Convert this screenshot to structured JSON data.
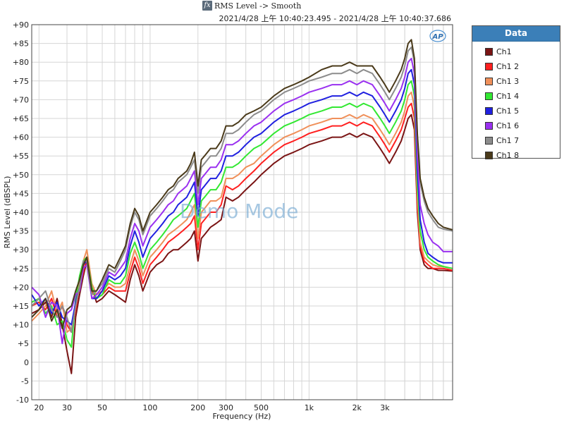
{
  "header": {
    "fx_glyph": "fx",
    "title": "RMS Level -> Smooth",
    "subtitle": "2021/4/28 上午 10:40:23.495 - 2021/4/28 上午 10:40:37.686"
  },
  "logo_text": "AP",
  "watermark": "Demo Mode",
  "legend": {
    "title": "Data",
    "items": [
      {
        "label": "Ch1",
        "color": "#7a1414"
      },
      {
        "label": "Ch1 2",
        "color": "#ff2020"
      },
      {
        "label": "Ch1 3",
        "color": "#f0905a"
      },
      {
        "label": "Ch1 4",
        "color": "#32e832"
      },
      {
        "label": "Ch1 5",
        "color": "#2020e0"
      },
      {
        "label": "Ch1 6",
        "color": "#9a30f0"
      },
      {
        "label": "Ch1 7",
        "color": "#8c8c8c"
      },
      {
        "label": "Ch1 8",
        "color": "#4a3a1a"
      }
    ]
  },
  "chart_data": {
    "type": "line",
    "title": "RMS Level -> Smooth",
    "xlabel": "Frequency (Hz)",
    "ylabel": "RMS Level (dBSPL)",
    "x_scale": "log",
    "xlim": [
      18,
      8000
    ],
    "ylim": [
      -10,
      90
    ],
    "grid": true,
    "legend_position": "right",
    "x_ticks": [
      {
        "value": 20,
        "label": "20"
      },
      {
        "value": 30,
        "label": "30"
      },
      {
        "value": 50,
        "label": "50"
      },
      {
        "value": 100,
        "label": "100"
      },
      {
        "value": 200,
        "label": "200"
      },
      {
        "value": 300,
        "label": "300"
      },
      {
        "value": 500,
        "label": "500"
      },
      {
        "value": 1000,
        "label": "1k"
      },
      {
        "value": 2000,
        "label": "2k"
      },
      {
        "value": 3000,
        "label": "3k"
      }
    ],
    "y_ticks": [
      {
        "value": 90,
        "label": "+90"
      },
      {
        "value": 85,
        "label": "+85"
      },
      {
        "value": 80,
        "label": "+80"
      },
      {
        "value": 75,
        "label": "+75"
      },
      {
        "value": 70,
        "label": "+70"
      },
      {
        "value": 65,
        "label": "+65"
      },
      {
        "value": 60,
        "label": "+60"
      },
      {
        "value": 55,
        "label": "+55"
      },
      {
        "value": 50,
        "label": "+50"
      },
      {
        "value": 45,
        "label": "+45"
      },
      {
        "value": 40,
        "label": "+40"
      },
      {
        "value": 35,
        "label": "+35"
      },
      {
        "value": 30,
        "label": "+30"
      },
      {
        "value": 25,
        "label": "+25"
      },
      {
        "value": 20,
        "label": "+20"
      },
      {
        "value": 15,
        "label": "+15"
      },
      {
        "value": 10,
        "label": "+10"
      },
      {
        "value": 5,
        "label": "+5"
      },
      {
        "value": 0,
        "label": "0"
      },
      {
        "value": -5,
        "label": "-5"
      },
      {
        "value": -10,
        "label": "-10"
      }
    ],
    "x": [
      18,
      20,
      22,
      24,
      26,
      28,
      30,
      32,
      34,
      36,
      38,
      40,
      43,
      46,
      50,
      55,
      60,
      65,
      70,
      75,
      80,
      85,
      90,
      100,
      110,
      120,
      130,
      140,
      150,
      160,
      170,
      180,
      190,
      200,
      210,
      220,
      240,
      260,
      280,
      300,
      330,
      360,
      400,
      450,
      500,
      600,
      700,
      800,
      900,
      1000,
      1200,
      1400,
      1600,
      1800,
      2000,
      2200,
      2500,
      2800,
      3000,
      3200,
      3500,
      3800,
      4000,
      4200,
      4400,
      4600,
      4800,
      5000,
      5300,
      5600,
      6000,
      6500,
      7000,
      8000
    ],
    "series": [
      {
        "name": "Ch1",
        "color": "#7a1414",
        "values": [
          13,
          14,
          16,
          12,
          17,
          10,
          3,
          -3,
          12,
          18,
          23,
          27,
          20,
          16,
          17,
          19,
          18,
          17,
          16,
          22,
          26,
          23,
          19,
          24,
          26,
          27,
          29,
          30,
          30,
          31,
          32,
          33,
          35,
          27,
          33,
          34,
          36,
          37,
          38,
          44,
          43,
          44,
          46,
          48,
          50,
          53,
          55,
          56,
          57,
          58,
          59,
          60,
          60,
          61,
          60,
          61,
          60,
          57,
          55,
          53,
          56,
          59,
          62,
          65,
          66,
          62,
          40,
          30,
          26,
          25,
          25,
          24.5,
          24.5,
          24.3
        ]
      },
      {
        "name": "Ch1 2",
        "color": "#ff2020",
        "values": [
          15,
          16,
          14,
          17,
          12,
          15,
          10,
          8,
          14,
          20,
          24,
          28,
          19,
          17,
          18,
          20,
          19,
          19,
          19,
          24,
          28,
          25,
          21,
          26,
          28,
          30,
          32,
          33,
          34,
          35,
          36,
          37,
          39,
          30,
          37,
          38,
          40,
          40,
          42,
          47,
          46,
          47,
          49,
          51,
          53,
          56,
          58,
          59,
          60,
          61,
          62,
          63,
          63,
          64,
          63,
          64,
          63,
          60,
          58,
          56,
          59,
          62,
          65,
          68,
          69,
          65,
          42,
          31,
          27,
          26,
          25,
          25,
          25,
          24.5
        ]
      },
      {
        "name": "Ch1 3",
        "color": "#f0905a",
        "values": [
          11,
          13,
          15,
          19,
          13,
          16,
          8,
          9,
          15,
          22,
          27,
          30,
          21,
          18,
          19,
          21,
          20,
          20,
          21,
          26,
          30,
          27,
          23,
          28,
          30,
          32,
          34,
          35,
          36,
          37,
          38,
          40,
          42,
          33,
          40,
          41,
          43,
          43,
          44,
          49,
          49,
          50,
          52,
          53,
          55,
          58,
          60,
          61,
          62,
          63,
          64,
          65,
          65,
          66,
          65,
          66,
          65,
          62,
          60,
          58,
          61,
          64,
          67,
          71,
          72,
          68,
          44,
          32,
          28,
          27,
          26,
          25.5,
          25.5,
          25
        ]
      },
      {
        "name": "Ch1 4",
        "color": "#32e832",
        "values": [
          16,
          17,
          13,
          15,
          10,
          11,
          6,
          4,
          17,
          23,
          27,
          28,
          20,
          17,
          18,
          22,
          21,
          21,
          23,
          29,
          32,
          29,
          25,
          30,
          32,
          34,
          36,
          38,
          39,
          40,
          41,
          43,
          45,
          36,
          43,
          44,
          46,
          46,
          48,
          52,
          52,
          53,
          55,
          57,
          58,
          61,
          63,
          64,
          65,
          66,
          67,
          68,
          68,
          69,
          68,
          69,
          68,
          65,
          63,
          61,
          64,
          67,
          70,
          74,
          75,
          71,
          47,
          35,
          30,
          28,
          27,
          26,
          25.5,
          25
        ]
      },
      {
        "name": "Ch1 5",
        "color": "#2020e0",
        "values": [
          18,
          15,
          17,
          13,
          16,
          12,
          11,
          10,
          16,
          20,
          26,
          27,
          17,
          17,
          19,
          23,
          22,
          23,
          25,
          31,
          35,
          32,
          28,
          33,
          35,
          37,
          39,
          40,
          42,
          43,
          44,
          46,
          48,
          39,
          46,
          47,
          49,
          49,
          51,
          55,
          55,
          56,
          58,
          60,
          61,
          64,
          66,
          67,
          68,
          69,
          70,
          71,
          71,
          72,
          71,
          72,
          71,
          68,
          66,
          64,
          67,
          70,
          73,
          77,
          78,
          74,
          51,
          38,
          32,
          29,
          28,
          27,
          26.5,
          26.5
        ]
      },
      {
        "name": "Ch1 6",
        "color": "#9a30f0",
        "values": [
          20,
          18,
          12,
          16,
          15,
          5,
          13,
          14,
          18,
          19,
          25,
          26,
          17,
          18,
          20,
          24,
          23,
          25,
          27,
          33,
          37,
          35,
          31,
          36,
          38,
          40,
          42,
          43,
          45,
          46,
          47,
          49,
          51,
          42,
          49,
          50,
          52,
          52,
          54,
          58,
          58,
          59,
          61,
          63,
          64,
          67,
          69,
          70,
          71,
          72,
          73,
          74,
          74,
          75,
          74,
          75,
          74,
          71,
          69,
          67,
          70,
          73,
          76,
          80,
          81,
          77,
          55,
          42,
          37,
          34,
          32,
          31,
          29.5,
          29.5
        ]
      },
      {
        "name": "Ch1 7",
        "color": "#8c8c8c",
        "values": [
          15,
          17,
          19,
          14,
          12,
          15,
          12,
          8,
          15,
          20,
          27,
          27,
          18,
          19,
          21,
          25,
          24,
          27,
          30,
          36,
          40,
          38,
          34,
          39,
          41,
          43,
          45,
          46,
          48,
          49,
          50,
          52,
          54,
          45,
          52,
          53,
          55,
          55,
          57,
          61,
          61,
          62,
          64,
          66,
          67,
          70,
          72,
          73,
          74,
          75,
          76,
          77,
          77,
          78,
          77,
          78,
          77,
          74,
          72,
          70,
          73,
          76,
          79,
          83,
          84,
          80,
          60,
          48,
          43,
          40,
          38,
          36,
          35.5,
          35
        ]
      },
      {
        "name": "Ch1 8",
        "color": "#4a3a1a",
        "values": [
          12,
          14,
          17,
          11,
          14,
          9,
          14,
          15,
          19,
          22,
          26,
          28,
          19,
          19,
          22,
          26,
          25,
          28,
          31,
          37,
          41,
          39,
          35,
          40,
          42,
          44,
          46,
          47,
          49,
          50,
          51,
          53,
          56,
          47,
          54,
          55,
          57,
          57,
          59,
          63,
          63,
          64,
          66,
          67,
          68,
          71,
          73,
          74,
          75,
          76,
          78,
          79,
          79,
          80,
          79,
          79,
          79,
          76,
          74,
          72,
          75,
          78,
          81,
          85,
          86,
          81,
          61,
          49,
          44,
          41,
          39,
          37,
          36,
          35.3
        ]
      }
    ]
  }
}
